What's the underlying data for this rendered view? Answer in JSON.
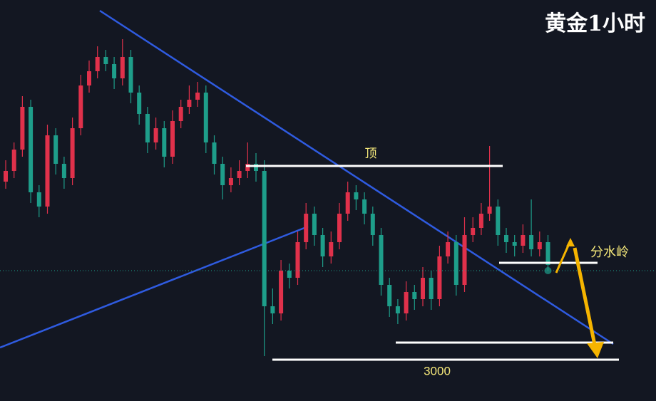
{
  "chart_data": {
    "type": "candlestick",
    "title": "黄金1小时",
    "up_color": "#e0314b",
    "down_color": "#1e9e8a",
    "ylim": [
      2988.4,
      3101
    ],
    "candles": [
      [
        3050,
        3056,
        3048,
        3053
      ],
      [
        3053,
        3061,
        3051,
        3059
      ],
      [
        3059,
        3074,
        3057,
        3071
      ],
      [
        3071,
        3073,
        3044,
        3047
      ],
      [
        3047,
        3049,
        3040,
        3043
      ],
      [
        3043,
        3066,
        3041,
        3063
      ],
      [
        3063,
        3065,
        3052,
        3055
      ],
      [
        3055,
        3057,
        3048,
        3051
      ],
      [
        3051,
        3068,
        3049,
        3065
      ],
      [
        3065,
        3080,
        3063,
        3077
      ],
      [
        3077,
        3084,
        3075,
        3081
      ],
      [
        3081,
        3088,
        3079,
        3085
      ],
      [
        3085,
        3087,
        3081,
        3083
      ],
      [
        3083,
        3085,
        3076,
        3079
      ],
      [
        3079,
        3090,
        3077,
        3085
      ],
      [
        3085,
        3087,
        3072,
        3075
      ],
      [
        3075,
        3077,
        3066,
        3069
      ],
      [
        3069,
        3071,
        3058,
        3061
      ],
      [
        3061,
        3068,
        3059,
        3065
      ],
      [
        3065,
        3067,
        3054,
        3057
      ],
      [
        3057,
        3070,
        3055,
        3067
      ],
      [
        3067,
        3073,
        3065,
        3071
      ],
      [
        3071,
        3077,
        3069,
        3073
      ],
      [
        3073,
        3078,
        3071,
        3075
      ],
      [
        3075,
        3077,
        3058,
        3061
      ],
      [
        3061,
        3063,
        3052,
        3055
      ],
      [
        3055,
        3057,
        3045,
        3049
      ],
      [
        3049,
        3054,
        3047,
        3051
      ],
      [
        3051,
        3056,
        3049,
        3053
      ],
      [
        3053,
        3061,
        3051,
        3055
      ],
      [
        3055,
        3058,
        3050,
        3053
      ],
      [
        3053,
        3056,
        3001,
        3015
      ],
      [
        3015,
        3020,
        3010,
        3013
      ],
      [
        3013,
        3028,
        3011,
        3025
      ],
      [
        3025,
        3027,
        3020,
        3023
      ],
      [
        3023,
        3036,
        3021,
        3033
      ],
      [
        3033,
        3044,
        3031,
        3041
      ],
      [
        3041,
        3043,
        3032,
        3035
      ],
      [
        3035,
        3037,
        3026,
        3029
      ],
      [
        3029,
        3036,
        3027,
        3033
      ],
      [
        3033,
        3044,
        3031,
        3041
      ],
      [
        3041,
        3050,
        3039,
        3047
      ],
      [
        3047,
        3049,
        3042,
        3045
      ],
      [
        3045,
        3047,
        3038,
        3041
      ],
      [
        3041,
        3043,
        3032,
        3035
      ],
      [
        3035,
        3037,
        3018,
        3021
      ],
      [
        3021,
        3023,
        3012,
        3015
      ],
      [
        3015,
        3017,
        3010,
        3013
      ],
      [
        3013,
        3022,
        3011,
        3019
      ],
      [
        3019,
        3021,
        3014,
        3017
      ],
      [
        3017,
        3026,
        3015,
        3023
      ],
      [
        3023,
        3025,
        3014,
        3017
      ],
      [
        3017,
        3032,
        3015,
        3029
      ],
      [
        3029,
        3036,
        3027,
        3033
      ],
      [
        3033,
        3035,
        3018,
        3021
      ],
      [
        3021,
        3040,
        3019,
        3035
      ],
      [
        3035,
        3040,
        3033,
        3037
      ],
      [
        3037,
        3044,
        3035,
        3041
      ],
      [
        3041,
        3060,
        3039,
        3043
      ],
      [
        3043,
        3045,
        3032,
        3035
      ],
      [
        3035,
        3037,
        3030,
        3033
      ],
      [
        3033,
        3035,
        3029,
        3032
      ],
      [
        3032,
        3038,
        3030,
        3035
      ],
      [
        3035,
        3045,
        3029,
        3031
      ],
      [
        3031,
        3036,
        3029,
        3033
      ],
      [
        3033,
        3035,
        3025,
        3026.6
      ]
    ],
    "levels": [
      3054.4,
      3027.2,
      3004.8,
      3000
    ],
    "annotations": [
      "顶",
      "分水岭"
    ]
  }
}
